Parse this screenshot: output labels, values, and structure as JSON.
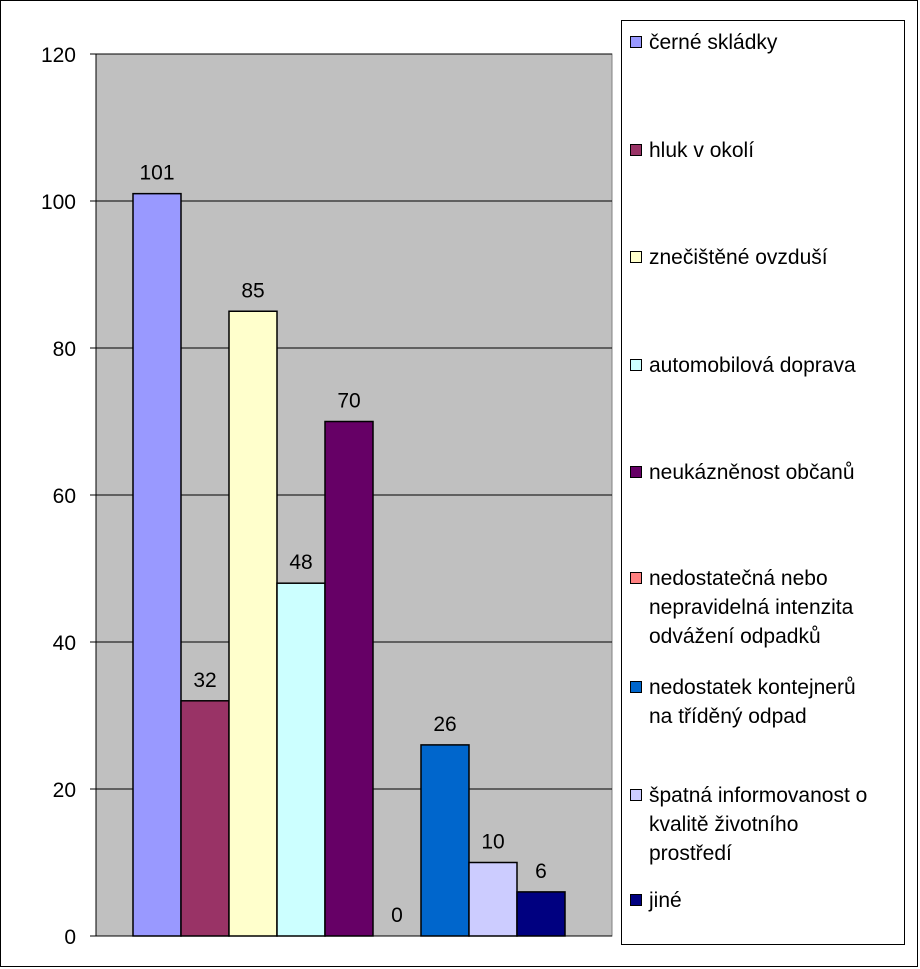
{
  "chart_data": {
    "type": "bar",
    "ylim": [
      0,
      120
    ],
    "yticks": [
      0,
      20,
      40,
      60,
      80,
      100,
      120
    ],
    "grid": true,
    "legend_position": "right",
    "plot_background": "#c0c0c0",
    "categories": [
      "černé skládky",
      "hluk v okolí",
      "znečištěné ovzduší",
      "automobilová doprava",
      "neukázněnost občanů",
      "nedostatečná nebo\nnepravidelná intenzita\nodvážení odpadků",
      "nedostatek kontejnerů\nna tříděný odpad",
      "špatná informovanost o\nkvalitě životního\nprostředí",
      "jiné"
    ],
    "values": [
      101,
      32,
      85,
      48,
      70,
      0,
      26,
      10,
      6
    ],
    "colors": [
      "#9999ff",
      "#993366",
      "#ffffcc",
      "#ccffff",
      "#660066",
      "#ff8080",
      "#0066cc",
      "#ccccff",
      "#000080"
    ]
  }
}
